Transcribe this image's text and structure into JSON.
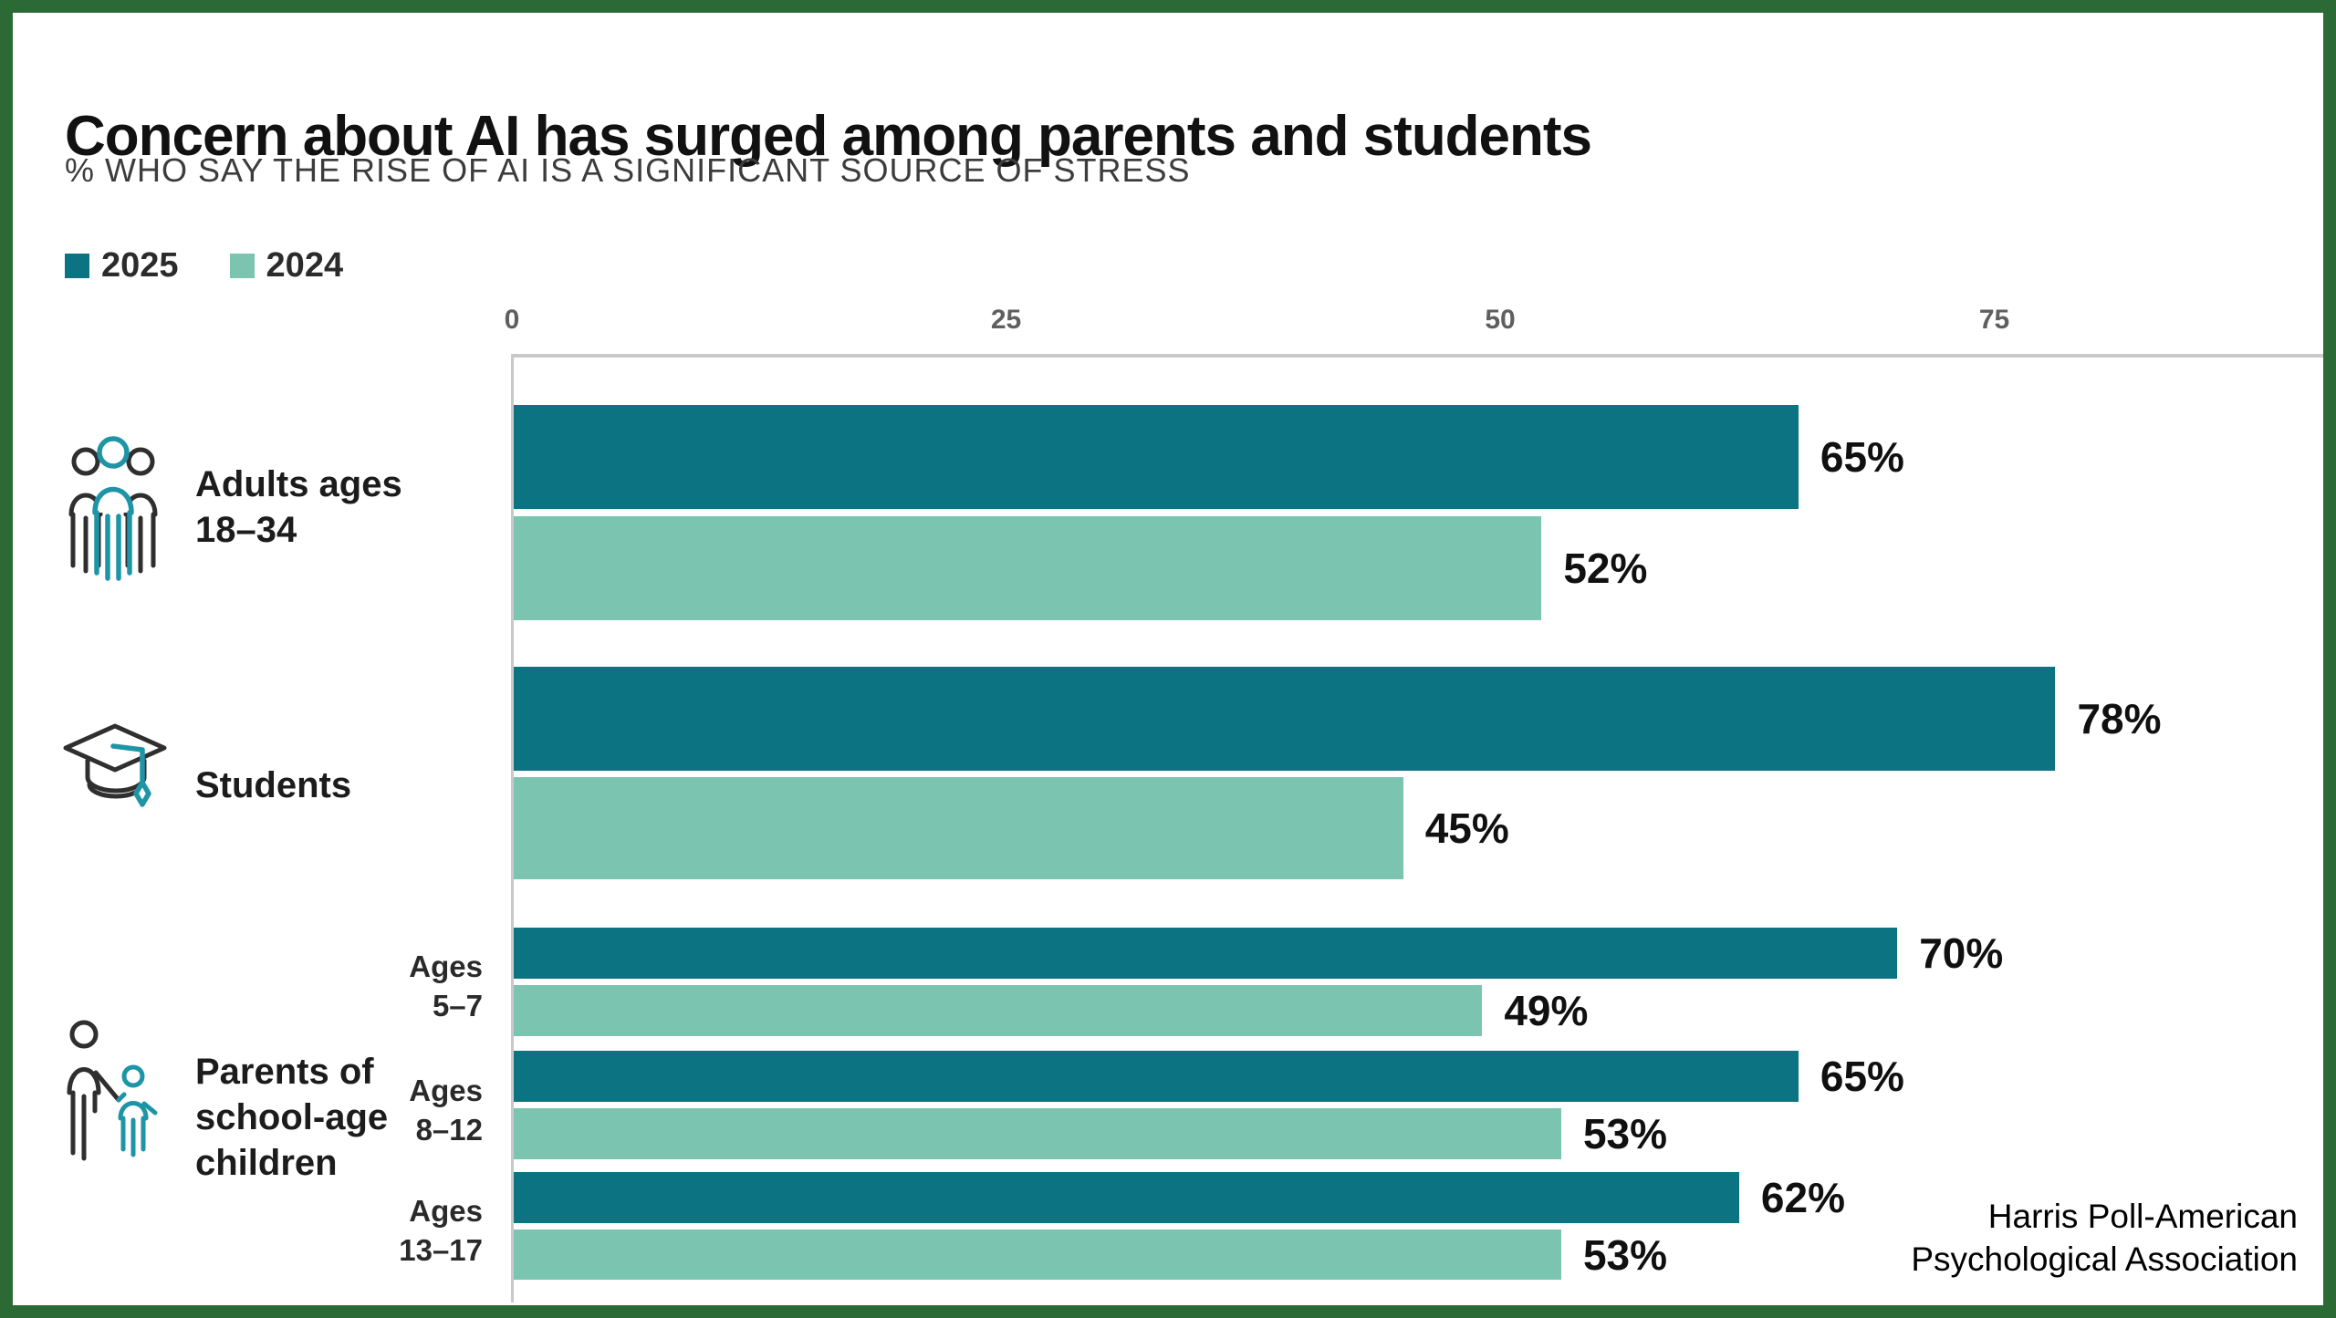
{
  "header": {
    "title": "Concern about AI has surged among parents and students",
    "subtitle": "% WHO SAY THE RISE OF AI IS A SIGNIFICANT SOURCE OF STRESS"
  },
  "legend": {
    "items": [
      {
        "label": "2025",
        "color": "#0b7381"
      },
      {
        "label": "2024",
        "color": "#7bc4af"
      }
    ]
  },
  "axis": {
    "tick_labels": [
      "0",
      "25",
      "50",
      "75"
    ]
  },
  "group_labels": {
    "adults": [
      "Adults ages",
      "18–34"
    ],
    "students": [
      "Students"
    ],
    "parents": [
      "Parents of",
      "school-age",
      "children"
    ],
    "ages_5_7": [
      "Ages",
      "5–7"
    ],
    "ages_8_12": [
      "Ages",
      "8–12"
    ],
    "ages_13_17": [
      "Ages",
      "13–17"
    ]
  },
  "rows": [
    {
      "group": "adults-18-34",
      "series": "2025",
      "value": 65,
      "label": "65%"
    },
    {
      "group": "adults-18-34",
      "series": "2024",
      "value": 52,
      "label": "52%"
    },
    {
      "group": "students",
      "series": "2025",
      "value": 78,
      "label": "78%"
    },
    {
      "group": "students",
      "series": "2024",
      "value": 45,
      "label": "45%"
    },
    {
      "group": "parents-5-7",
      "series": "2025",
      "value": 70,
      "label": "70%"
    },
    {
      "group": "parents-5-7",
      "series": "2024",
      "value": 49,
      "label": "49%"
    },
    {
      "group": "parents-8-12",
      "series": "2025",
      "value": 65,
      "label": "65%"
    },
    {
      "group": "parents-8-12",
      "series": "2024",
      "value": 53,
      "label": "53%"
    },
    {
      "group": "parents-13-17",
      "series": "2025",
      "value": 62,
      "label": "62%"
    },
    {
      "group": "parents-13-17",
      "series": "2024",
      "value": 53,
      "label": "53%"
    }
  ],
  "chart_data": {
    "type": "bar",
    "orientation": "horizontal",
    "title": "Concern about AI has surged among parents and students",
    "subtitle": "% WHO SAY THE RISE OF AI IS A SIGNIFICANT SOURCE OF STRESS",
    "categories": [
      "Adults ages 18–34",
      "Students",
      "Parents of school-age children — Ages 5–7",
      "Parents of school-age children — Ages 8–12",
      "Parents of school-age children — Ages 13–17"
    ],
    "series": [
      {
        "name": "2025",
        "color": "#0b7381",
        "values": [
          65,
          78,
          70,
          65,
          62
        ]
      },
      {
        "name": "2024",
        "color": "#7bc4af",
        "values": [
          52,
          45,
          49,
          53,
          53
        ]
      }
    ],
    "value_suffix": "%",
    "xlim": [
      0,
      92
    ],
    "xticks": [
      0,
      25,
      50,
      75
    ],
    "grid": false,
    "legend_position": "top-left"
  },
  "colors": {
    "frame_border": "#2c6a35",
    "axis_line": "#c9c9c9",
    "icon_accent_teal": "#1e95a6",
    "icon_dark": "#2f2f2f"
  },
  "source": [
    "Harris Poll-American",
    "Psychological Association"
  ]
}
